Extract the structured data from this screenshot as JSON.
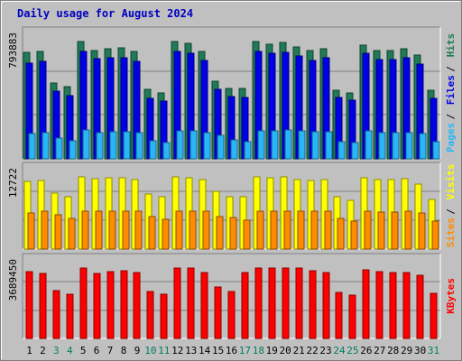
{
  "title": "Daily usage for August 2024",
  "colors": {
    "hits": "#1f7a55",
    "files": "#0000e6",
    "pages": "#29b6f6",
    "visits": "#ffff00",
    "sites": "#ff8c00",
    "kbytes": "#ff0000",
    "panel_bg": "#c0c0c0",
    "weekend_label": "#007f5f",
    "weekday_label": "#000000"
  },
  "chart_data": [
    {
      "type": "bar",
      "name": "hits-files-pages",
      "y_max_label": "793883",
      "legend": [
        "Pages",
        "Files",
        "Hits"
      ],
      "categories": [
        "1",
        "2",
        "3",
        "4",
        "5",
        "6",
        "7",
        "8",
        "9",
        "10",
        "11",
        "12",
        "13",
        "14",
        "15",
        "16",
        "17",
        "18",
        "19",
        "20",
        "21",
        "22",
        "23",
        "24",
        "25",
        "26",
        "27",
        "28",
        "29",
        "30",
        "31"
      ],
      "ylim": [
        0,
        793883
      ],
      "series": [
        {
          "name": "Hits",
          "color_key": "hits",
          "values": [
            718000,
            729000,
            510000,
            489000,
            793883,
            735000,
            745000,
            750000,
            725000,
            468000,
            443000,
            793883,
            780000,
            725000,
            528000,
            477000,
            477000,
            793883,
            775000,
            786000,
            758000,
            730000,
            746000,
            463000,
            446000,
            772000,
            730000,
            735000,
            745000,
            705000,
            463000
          ]
        },
        {
          "name": "Files",
          "color_key": "files",
          "values": [
            646000,
            662000,
            457000,
            426000,
            729000,
            676000,
            683000,
            687000,
            660000,
            410000,
            388000,
            724000,
            712000,
            663000,
            472000,
            420000,
            415000,
            725000,
            712000,
            720000,
            695000,
            665000,
            683000,
            413000,
            394000,
            712000,
            673000,
            673000,
            682000,
            643000,
            407000
          ]
        },
        {
          "name": "Pages",
          "color_key": "pages",
          "values": [
            174000,
            175000,
            139000,
            124000,
            194000,
            180000,
            184000,
            185000,
            178000,
            120000,
            110000,
            191000,
            189000,
            176000,
            161000,
            126000,
            119000,
            192000,
            190000,
            193000,
            187000,
            181000,
            184000,
            116000,
            112000,
            189000,
            179000,
            177000,
            180000,
            171000,
            113000
          ]
        }
      ]
    },
    {
      "type": "bar",
      "name": "visits-sites",
      "y_max_label": "12722",
      "legend": [
        "Sites",
        "Visits"
      ],
      "categories": [
        "1",
        "2",
        "3",
        "4",
        "5",
        "6",
        "7",
        "8",
        "9",
        "10",
        "11",
        "12",
        "13",
        "14",
        "15",
        "16",
        "17",
        "18",
        "19",
        "20",
        "21",
        "22",
        "23",
        "24",
        "25",
        "26",
        "27",
        "28",
        "29",
        "30",
        "31"
      ],
      "ylim": [
        0,
        12722
      ],
      "series": [
        {
          "name": "Visits",
          "color_key": "visits",
          "values": [
            12000,
            12100,
            9800,
            9200,
            12722,
            12400,
            12600,
            12600,
            12300,
            9700,
            9200,
            12722,
            12600,
            12300,
            10200,
            9300,
            9200,
            12722,
            12600,
            12722,
            12300,
            12100,
            12300,
            9300,
            8600,
            12500,
            12200,
            12200,
            12400,
            11400,
            8700
          ]
        },
        {
          "name": "Sites",
          "color_key": "sites",
          "values": [
            6400,
            6600,
            6000,
            5400,
            6600,
            6600,
            6700,
            6700,
            6600,
            5800,
            5200,
            6700,
            6700,
            6600,
            5800,
            5500,
            5100,
            6700,
            6700,
            6700,
            6600,
            6600,
            6600,
            5400,
            5000,
            6600,
            6500,
            6500,
            6600,
            6400,
            4900
          ]
        }
      ]
    },
    {
      "type": "bar",
      "name": "kbytes",
      "y_max_label": "3689450",
      "legend": [
        "KBytes"
      ],
      "categories": [
        "1",
        "2",
        "3",
        "4",
        "5",
        "6",
        "7",
        "8",
        "9",
        "10",
        "11",
        "12",
        "13",
        "14",
        "15",
        "16",
        "17",
        "18",
        "19",
        "20",
        "21",
        "22",
        "23",
        "24",
        "25",
        "26",
        "27",
        "28",
        "29",
        "30",
        "31"
      ],
      "ylim": [
        0,
        3689450
      ],
      "series": [
        {
          "name": "KBytes",
          "color_key": "kbytes",
          "values": [
            3500000,
            3400000,
            2500000,
            2300000,
            3689450,
            3400000,
            3500000,
            3550000,
            3450000,
            2450000,
            2300000,
            3689450,
            3689450,
            3450000,
            2700000,
            2450000,
            3450000,
            3689450,
            3689450,
            3689450,
            3689450,
            3550000,
            3450000,
            2400000,
            2250000,
            3600000,
            3500000,
            3450000,
            3450000,
            3300000,
            2350000
          ]
        }
      ]
    }
  ],
  "weekend_days": [
    "3",
    "4",
    "10",
    "11",
    "17",
    "18",
    "24",
    "25",
    "31"
  ]
}
